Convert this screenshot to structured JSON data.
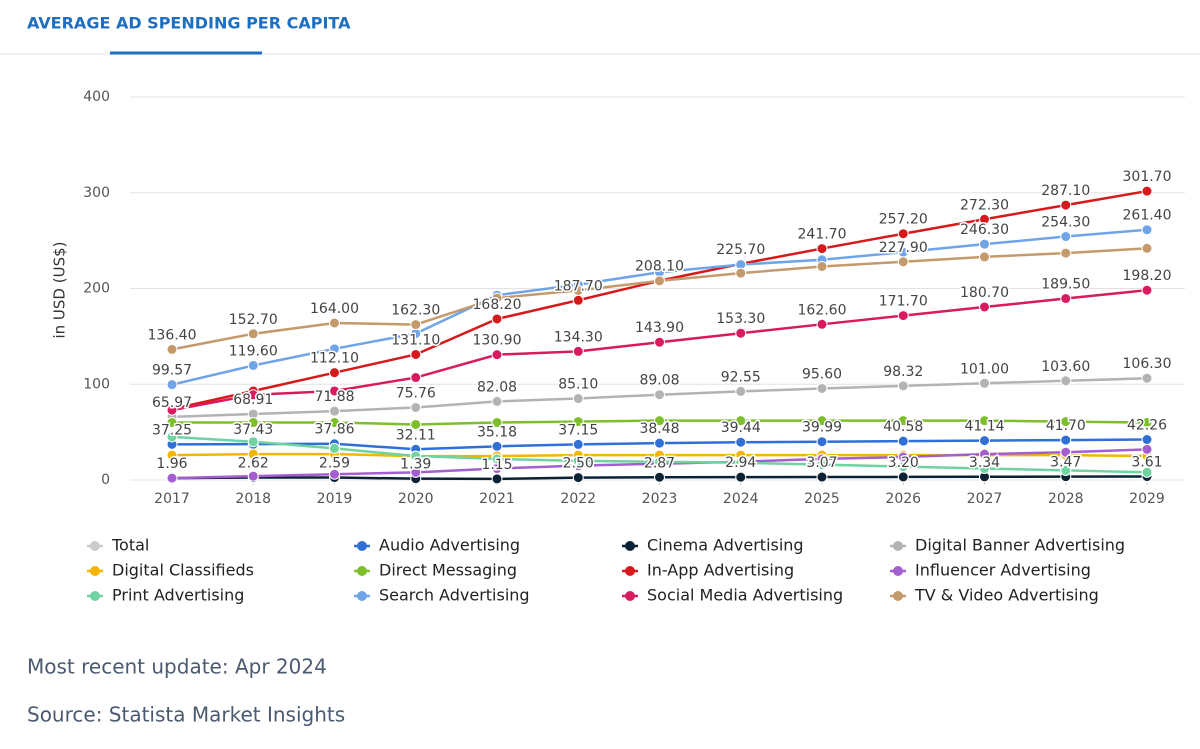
{
  "header": {
    "title": "AVERAGE AD SPENDING PER CAPITA"
  },
  "chart_data": {
    "type": "line",
    "y_label": "in USD (US$)",
    "x": [
      "2017",
      "2018",
      "2019",
      "2020",
      "2021",
      "2022",
      "2023",
      "2024",
      "2025",
      "2026",
      "2027",
      "2028",
      "2029"
    ],
    "ylim": [
      0,
      400
    ],
    "yticks": [
      0,
      100,
      200,
      300,
      400
    ],
    "grid": true,
    "legend": "bottom",
    "hidden_series": [
      {
        "name": "Total",
        "color": "#cccccc"
      }
    ],
    "series": [
      {
        "name": "Audio Advertising",
        "color": "#2f6fd6",
        "values": [
          37.25,
          37.43,
          37.86,
          32.11,
          35.18,
          37.15,
          38.48,
          39.44,
          39.99,
          40.58,
          41.14,
          41.7,
          42.26
        ],
        "value_labels": [
          "37.25",
          "37.43",
          "37.86",
          "32.11",
          "35.18",
          "37.15",
          "38.48",
          "39.44",
          "39.99",
          "40.58",
          "41.14",
          "41.70",
          "42.26"
        ]
      },
      {
        "name": "Cinema Advertising",
        "color": "#0b2235",
        "values": [
          1.96,
          2.62,
          2.59,
          1.39,
          1.15,
          2.5,
          2.87,
          2.94,
          3.07,
          3.2,
          3.34,
          3.47,
          3.61
        ],
        "value_labels": [
          "1.96",
          "2.62",
          "2.59",
          "1.39",
          "1.15",
          "2.50",
          "2.87",
          "2.94",
          "3.07",
          "3.20",
          "3.34",
          "3.47",
          "3.61"
        ]
      },
      {
        "name": "Digital Banner Advertising",
        "color": "#b3b3b3",
        "values": [
          65.97,
          68.91,
          71.88,
          75.76,
          82.08,
          85.1,
          89.08,
          92.55,
          95.6,
          98.32,
          101,
          103.6,
          106.3
        ],
        "value_labels": [
          "65.97",
          "68.91",
          "71.88",
          "75.76",
          "82.08",
          "85.10",
          "89.08",
          "92.55",
          "95.60",
          "98.32",
          "101.00",
          "103.60",
          "106.30"
        ]
      },
      {
        "name": "Digital Classifieds",
        "color": "#f5b400",
        "values": [
          26,
          27,
          27,
          25,
          25,
          26,
          26,
          26,
          26,
          26,
          26,
          26,
          25
        ]
      },
      {
        "name": "Direct Messaging",
        "color": "#7cbf2a",
        "values": [
          60,
          60,
          60,
          58,
          60,
          61,
          62,
          62,
          62,
          62,
          62,
          61,
          60
        ]
      },
      {
        "name": "In-App Advertising",
        "color": "#d7191c",
        "values": [
          74,
          93,
          112.1,
          131.1,
          168.2,
          187.7,
          208.1,
          225.7,
          241.7,
          257.2,
          272.3,
          287.1,
          301.7
        ],
        "value_labels": [
          null,
          null,
          "112.10",
          "131.10",
          "168.20",
          "187.70",
          "208.10",
          "225.70",
          "241.70",
          "257.20",
          "272.30",
          "287.10",
          "301.70"
        ]
      },
      {
        "name": "Influencer Advertising",
        "color": "#a45ecf",
        "values": [
          2,
          4,
          6,
          8,
          12,
          15,
          17,
          19,
          22,
          24,
          27,
          29,
          32
        ]
      },
      {
        "name": "Print Advertising",
        "color": "#6fd3a0",
        "values": [
          45,
          40,
          33,
          25,
          22,
          20,
          19,
          18,
          16,
          14,
          12,
          10,
          8
        ]
      },
      {
        "name": "Search Advertising",
        "color": "#6fa4e8",
        "values": [
          99.57,
          119.6,
          137,
          153,
          193,
          204,
          217,
          225,
          230,
          238,
          246.3,
          254.3,
          261.4
        ],
        "value_labels": [
          "99.57",
          "119.60",
          null,
          null,
          null,
          null,
          null,
          null,
          null,
          null,
          "246.30",
          "254.30",
          "261.40"
        ]
      },
      {
        "name": "Social Media Advertising",
        "color": "#d81b60",
        "values": [
          73,
          89,
          93,
          107,
          130.9,
          134.3,
          143.9,
          153.3,
          162.6,
          171.7,
          180.7,
          189.5,
          198.2
        ],
        "value_labels": [
          null,
          null,
          null,
          null,
          "130.90",
          "134.30",
          "143.90",
          "153.30",
          "162.60",
          "171.70",
          "180.70",
          "189.50",
          "198.20"
        ]
      },
      {
        "name": "TV & Video Advertising",
        "color": "#c49a6c",
        "values": [
          136.4,
          152.7,
          164,
          162.3,
          190,
          198,
          208,
          216,
          223,
          227.9,
          233,
          237,
          242
        ],
        "value_labels": [
          "136.40",
          "152.70",
          "164.00",
          "162.30",
          null,
          null,
          null,
          null,
          null,
          "227.90",
          null,
          null,
          null
        ]
      }
    ]
  },
  "footer": {
    "update": "Most recent update: Apr 2024",
    "source": "Source: Statista Market Insights"
  }
}
